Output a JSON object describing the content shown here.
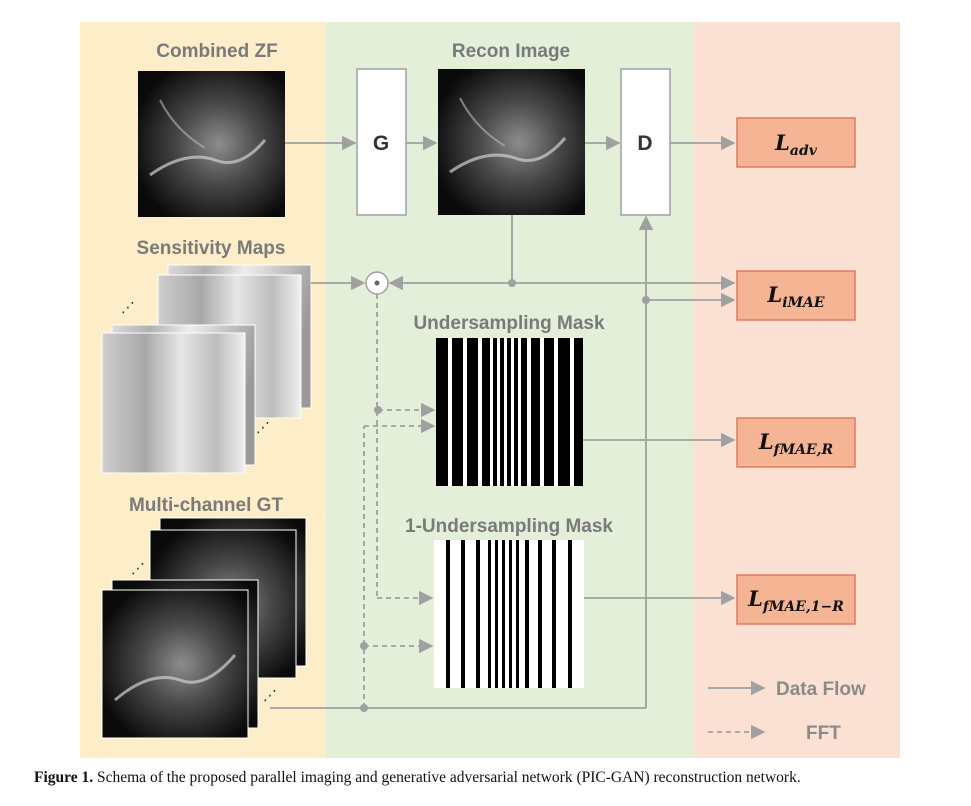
{
  "panels": {
    "combined_zf": "Combined ZF",
    "sensitivity_maps": "Sensitivity Maps",
    "multi_channel_gt": "Multi-channel  GT",
    "recon_image": "Recon Image",
    "undersampling_mask": "Undersampling Mask",
    "one_minus_mask": "1-Undersampling Mask"
  },
  "blocks": {
    "generator": "G",
    "discriminator": "D",
    "operator": "⊙"
  },
  "losses": [
    {
      "main": "L",
      "sub": "adv"
    },
    {
      "main": "L",
      "sub": "iMAE"
    },
    {
      "main": "L",
      "sub": "fMAE,R"
    },
    {
      "main": "L",
      "sub": "fMAE,1−R"
    }
  ],
  "legend": {
    "data_flow": "Data Flow",
    "fft": "FFT"
  },
  "caption": {
    "label": "Figure 1.",
    "text": " Schema of the proposed parallel imaging and generative adversarial network (PIC-GAN) reconstruction network."
  },
  "colors": {
    "yellow_bg": "#fdedc8",
    "green_bg": "#e4efd9",
    "pink_bg": "#fbe1d3",
    "loss_fill": "#f5b494",
    "loss_border": "#e07a62",
    "arrow": "#a0a0a0"
  }
}
